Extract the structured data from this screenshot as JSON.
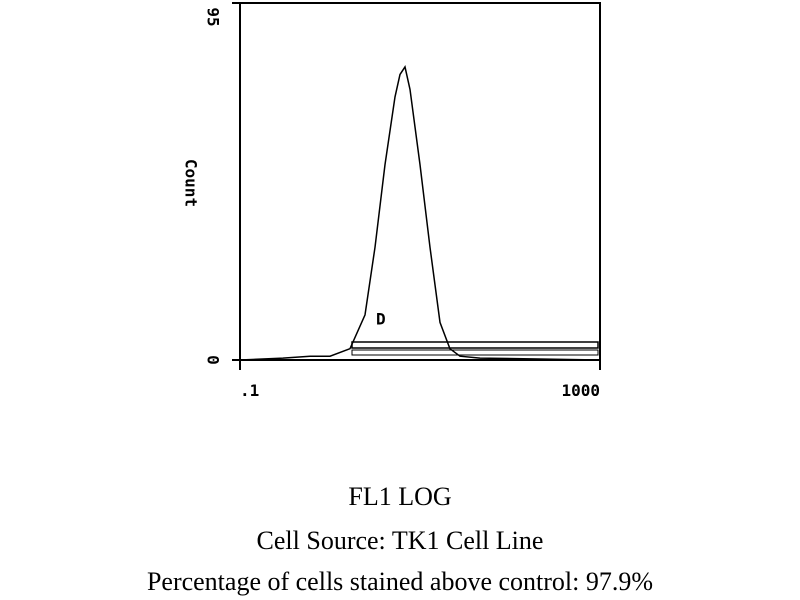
{
  "chart_data": {
    "type": "line",
    "y_label": "Count",
    "caption": [
      "FL1 LOG",
      "Cell Source:  TK1 Cell Line",
      "Percentage of cells stained above control:  97.9%"
    ],
    "annotation": "D",
    "x": [
      0.1,
      0.3,
      0.6,
      1,
      1.67,
      2.45,
      3.16,
      4.08,
      5.28,
      6.0,
      6.81,
      7.74,
      8.8,
      10,
      12.9,
      16.7,
      21.5,
      27.8,
      46.4,
      1000
    ],
    "values": [
      0,
      0.5,
      1,
      1,
      3,
      12,
      30,
      52,
      70,
      76,
      78,
      72,
      62,
      52,
      30,
      10,
      3,
      1,
      0.5,
      0
    ],
    "color": "#000000",
    "xscale": "log",
    "xlim": [
      0.1,
      1000
    ],
    "xticks": [
      {
        "value": 0.1,
        "label": ".1"
      },
      1000
    ],
    "ylim": [
      0,
      95
    ],
    "yticks": [
      0,
      95
    ]
  }
}
